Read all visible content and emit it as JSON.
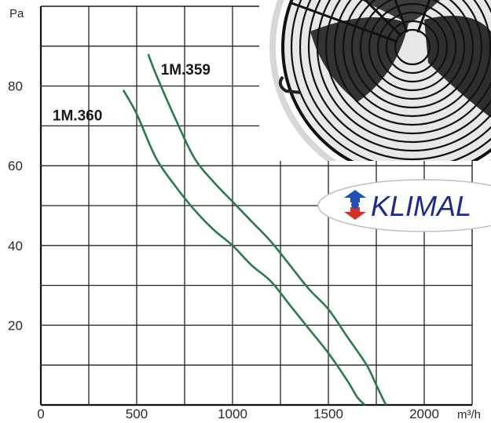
{
  "chart_data": {
    "type": "line",
    "title": "",
    "xlabel": "m³/h",
    "ylabel": "Pa",
    "xlim": [
      0,
      2250
    ],
    "ylim": [
      0,
      100
    ],
    "x_ticks": [
      0,
      500,
      1000,
      1500,
      2000
    ],
    "y_ticks": [
      20,
      40,
      60,
      80
    ],
    "grid": true,
    "legend": "labels-on-curves",
    "series": [
      {
        "name": "1M.359",
        "color": "#2a7a4a",
        "points": [
          [
            560,
            88
          ],
          [
            600,
            83
          ],
          [
            700,
            72
          ],
          [
            800,
            62
          ],
          [
            900,
            56
          ],
          [
            1000,
            51
          ],
          [
            1100,
            46
          ],
          [
            1200,
            41
          ],
          [
            1300,
            35
          ],
          [
            1400,
            29
          ],
          [
            1500,
            24
          ],
          [
            1600,
            17
          ],
          [
            1700,
            10
          ],
          [
            1750,
            5
          ],
          [
            1800,
            0
          ]
        ]
      },
      {
        "name": "1M.360",
        "color": "#2a7a4a",
        "points": [
          [
            430,
            79
          ],
          [
            500,
            73
          ],
          [
            600,
            62
          ],
          [
            700,
            55
          ],
          [
            800,
            49
          ],
          [
            900,
            44
          ],
          [
            1000,
            40
          ],
          [
            1100,
            35
          ],
          [
            1200,
            31
          ],
          [
            1300,
            25
          ],
          [
            1400,
            19
          ],
          [
            1500,
            13
          ],
          [
            1600,
            6
          ],
          [
            1650,
            2
          ],
          [
            1690,
            0
          ]
        ]
      }
    ]
  },
  "brand": {
    "logo_text": "KLIMAL",
    "colors": {
      "blue": "#1d4fb5",
      "red": "#d4302b",
      "ring": "#b9bfd0"
    }
  },
  "photo": {
    "subject": "axial fan with wire guard",
    "colors": {
      "grille": "#222222",
      "blade": "#3a3a3a",
      "background": "#dcdcdc"
    }
  }
}
